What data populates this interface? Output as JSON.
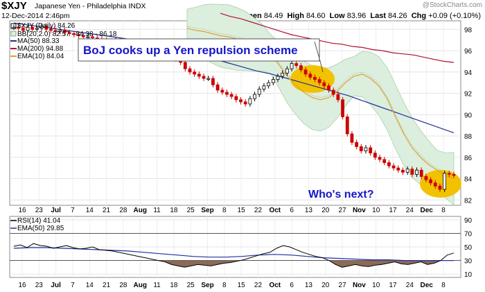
{
  "header": {
    "symbol": "$XJY",
    "name": "Japanese Yen - Philadelphia  INDX",
    "date": "12-Dec-2014 2:46pm",
    "brand": "@StockCharts.com",
    "open_label": "Open",
    "open": "84.49",
    "high_label": "High",
    "high": "84.60",
    "low_label": "Low",
    "low": "83.96",
    "last_label": "Last",
    "last": "84.26",
    "chg_label": "Chg",
    "chg": "+0.09 (+0.10%)"
  },
  "legend": {
    "price": "$XJY (Daily) 84.26",
    "bb": "BB(20,2.0) 82.57 - 84.38 - 86.18",
    "ma50": "MA(50) 88.33",
    "ma200": "MA(200) 94.88",
    "ema10": "EMA(10) 84.04",
    "rsi": "RSI(14) 41.04",
    "rsi_ema": "EMA(50) 29.85"
  },
  "annotations": {
    "callout": "BoJ cooks up a Yen repulsion scheme",
    "question": "Who's next?"
  },
  "colors": {
    "up": "#000000",
    "down": "#cc0000",
    "bb_fill": "#dceedd",
    "ma50": "#1f2f9e",
    "ma200": "#b01030",
    "ema10": "#e0a030",
    "rsi_fill": "#8b6a5a",
    "highlight": "#f2c200"
  },
  "chart_data": [
    {
      "type": "line",
      "title": "$XJY (Daily)",
      "ylim": [
        81.5,
        98.8
      ],
      "yticks": [
        82,
        84,
        86,
        88,
        90,
        92,
        94,
        96,
        98
      ],
      "x_tick_labels": [
        "16",
        "23",
        "Jul",
        "7",
        "14",
        "21",
        "28",
        "Aug",
        "11",
        "18",
        "25",
        "Sep",
        "8",
        "15",
        "22",
        "Oct",
        "6",
        "13",
        "20",
        "27",
        "Nov",
        "10",
        "17",
        "24",
        "Dec",
        "8"
      ],
      "grid": true,
      "series": [
        {
          "name": "$XJY",
          "values": [
            98.2,
            98.1,
            97.9,
            98.2,
            98.0,
            98.1,
            98.3,
            98.0,
            97.9,
            97.8,
            97.9,
            97.7,
            97.6,
            97.5,
            97.4,
            97.3,
            97.3,
            97.2,
            97.1,
            97.0,
            96.8,
            96.9,
            97.0,
            96.9,
            96.8,
            96.7,
            96.6,
            96.5,
            96.4,
            96.3,
            96.1,
            96.0,
            95.8,
            95.6,
            95.3,
            95.2,
            94.9,
            94.3,
            94.0,
            93.8,
            93.6,
            93.4,
            93.4,
            92.8,
            92.3,
            92.1,
            91.9,
            91.7,
            91.4,
            91.2,
            91.0,
            91.5,
            91.9,
            92.4,
            92.7,
            93.0,
            93.3,
            93.6,
            93.9,
            94.3,
            94.8,
            94.6,
            94.2,
            93.8,
            93.5,
            93.3,
            93.0,
            92.7,
            92.3,
            91.9,
            91.4,
            89.8,
            88.2,
            87.4,
            87.0,
            86.6,
            86.9,
            86.4,
            86.0,
            85.8,
            85.5,
            85.2,
            85.0,
            84.8,
            84.6,
            84.9,
            84.4,
            84.8,
            84.2,
            83.9,
            83.6,
            83.3,
            83.0,
            84.5,
            84.4,
            84.3
          ]
        },
        {
          "name": "MA(50)",
          "values": [
            98.6,
            98.4,
            98.2,
            98.0,
            97.8,
            97.6,
            97.4,
            97.2,
            97.0,
            96.7,
            96.4,
            96.1,
            95.7,
            95.3,
            94.9,
            94.5,
            94.1,
            93.8,
            93.4,
            93.0,
            92.6,
            92.2,
            91.8,
            91.3,
            90.8,
            90.3,
            89.8,
            89.3,
            88.8,
            88.3
          ]
        },
        {
          "name": "MA(200)",
          "values": [
            99.5,
            99.2,
            99.0,
            98.7,
            98.4,
            98.1,
            97.8,
            97.5,
            97.3,
            97.1,
            96.9,
            96.7,
            96.6,
            96.4,
            96.3,
            96.1,
            96.0,
            95.8,
            95.7,
            95.6,
            95.4,
            95.2,
            95.0,
            94.9
          ]
        },
        {
          "name": "EMA(10)",
          "values": [
            98.1,
            97.9,
            97.8,
            97.6,
            97.4,
            97.3,
            97.1,
            96.9,
            96.6,
            96.3,
            95.7,
            94.7,
            93.6,
            92.8,
            92.1,
            91.6,
            91.4,
            91.6,
            92.2,
            93.0,
            93.6,
            93.8,
            93.4,
            92.7,
            91.5,
            89.8,
            88.2,
            86.9,
            86.0,
            85.3,
            84.8,
            84.3,
            84.0
          ]
        }
      ]
    },
    {
      "type": "line",
      "title": "RSI(14)",
      "ylim": [
        5,
        95
      ],
      "yticks": [
        10,
        30,
        50,
        70,
        90
      ],
      "x_tick_labels": [
        "16",
        "23",
        "Jul",
        "7",
        "14",
        "21",
        "28",
        "Aug",
        "11",
        "18",
        "25",
        "Sep",
        "8",
        "15",
        "22",
        "Oct",
        "6",
        "13",
        "20",
        "27",
        "Nov",
        "10",
        "17",
        "24",
        "Dec",
        "8"
      ],
      "series": [
        {
          "name": "RSI(14)",
          "values": [
            51,
            53,
            49,
            55,
            52,
            51,
            48,
            50,
            52,
            49,
            47,
            48,
            50,
            46,
            45,
            44,
            42,
            40,
            38,
            36,
            34,
            32,
            30,
            28,
            24,
            22,
            20,
            22,
            24,
            23,
            22,
            24,
            26,
            27,
            29,
            31,
            34,
            37,
            40,
            42,
            48,
            52,
            50,
            46,
            42,
            39,
            36,
            34,
            30,
            24,
            20,
            22,
            24,
            22,
            21,
            23,
            24,
            26,
            28,
            25,
            24,
            26,
            28,
            24,
            26,
            30,
            38,
            41
          ]
        },
        {
          "name": "EMA(50)",
          "values": [
            48,
            49,
            49,
            48,
            47,
            46,
            45,
            44,
            42,
            40,
            38,
            36,
            35,
            35,
            36,
            38,
            39,
            38,
            36,
            34,
            33,
            32,
            31,
            31,
            30,
            30,
            30,
            30
          ]
        }
      ]
    }
  ]
}
